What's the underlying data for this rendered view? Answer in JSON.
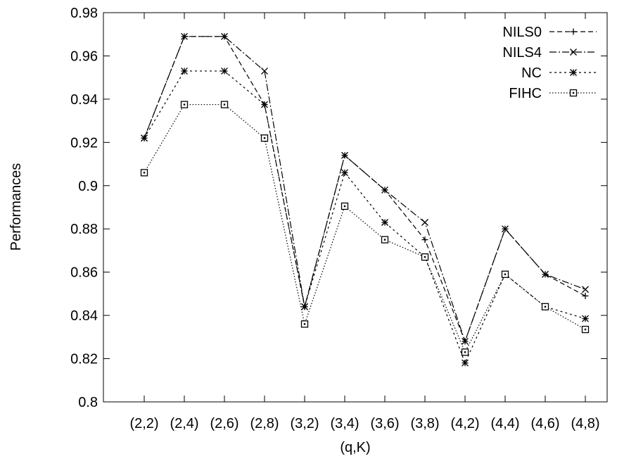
{
  "chart_data": {
    "type": "line",
    "xlabel": "(q,K)",
    "ylabel": "Performances",
    "categories": [
      "(2,2)",
      "(2,4)",
      "(2,6)",
      "(2,8)",
      "(3,2)",
      "(3,4)",
      "(3,6)",
      "(3,8)",
      "(4,2)",
      "(4,4)",
      "(4,6)",
      "(4,8)"
    ],
    "ylim": [
      0.8,
      0.98
    ],
    "yticks": [
      0.8,
      0.82,
      0.84,
      0.86,
      0.88,
      0.9,
      0.92,
      0.94,
      0.96,
      0.98
    ],
    "ytick_labels": [
      "0.8",
      "0.82",
      "0.84",
      "0.86",
      "0.88",
      "0.9",
      "0.92",
      "0.94",
      "0.96",
      "0.98"
    ],
    "grid": false,
    "legend_position": "top-right",
    "series": [
      {
        "name": "NILS0",
        "marker": "plus",
        "dash": "dashed",
        "values": [
          0.922,
          0.969,
          0.969,
          0.9375,
          0.844,
          0.914,
          0.898,
          0.875,
          0.828,
          0.88,
          0.859,
          0.849
        ]
      },
      {
        "name": "NILS4",
        "marker": "cross",
        "dash": "dash-dot",
        "values": [
          0.922,
          0.969,
          0.969,
          0.953,
          0.844,
          0.914,
          0.898,
          0.883,
          0.828,
          0.88,
          0.859,
          0.852
        ]
      },
      {
        "name": "NC",
        "marker": "asterisk",
        "dash": "dotted",
        "values": [
          0.922,
          0.953,
          0.953,
          0.9375,
          0.844,
          0.906,
          0.883,
          0.867,
          0.818,
          0.859,
          0.844,
          0.8385
        ]
      },
      {
        "name": "FIHC",
        "marker": "box",
        "dash": "fine-dotted",
        "values": [
          0.906,
          0.9375,
          0.9375,
          0.922,
          0.836,
          0.8905,
          0.875,
          0.867,
          0.823,
          0.859,
          0.844,
          0.8335
        ]
      }
    ]
  }
}
